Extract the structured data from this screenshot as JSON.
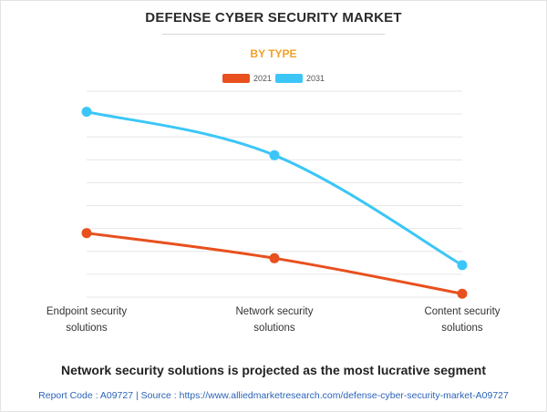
{
  "colors": {
    "title": "#2b2b2b",
    "subtitle": "#f4a024",
    "series_2021": "#e8501e",
    "series_2031": "#3cc6f7",
    "grid": "#e6e6e6",
    "source_link": "#2b63b8"
  },
  "header": {
    "title": "DEFENSE CYBER SECURITY MARKET",
    "subtitle": "BY TYPE"
  },
  "chart_data": {
    "type": "line",
    "title": "DEFENSE CYBER SECURITY MARKET",
    "subtitle": "BY TYPE",
    "categories": [
      [
        "Endpoint security",
        "solutions"
      ],
      [
        "Network security",
        "solutions"
      ],
      [
        "Content security",
        "solutions"
      ]
    ],
    "series": [
      {
        "name": "2021",
        "color": "#e8501e",
        "values": [
          2.8,
          1.7,
          0.15
        ]
      },
      {
        "name": "2031",
        "color": "#3cc6f7",
        "values": [
          8.1,
          6.2,
          1.4
        ]
      }
    ],
    "ylim": [
      0,
      9
    ],
    "gridlines": 9,
    "xlabel": "",
    "ylabel": "",
    "legend_position": "top-center"
  },
  "footer": {
    "headline": "Network security solutions is projected as the most lucrative segment",
    "source": "Report Code : A09727  |  Source : https://www.alliedmarketresearch.com/defense-cyber-security-market-A09727"
  }
}
